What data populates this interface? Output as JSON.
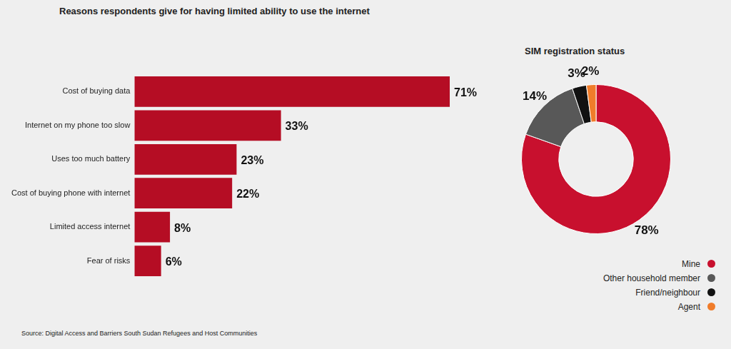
{
  "chart_data": [
    {
      "type": "bar",
      "orientation": "horizontal",
      "title": "Reasons respondents give for having limited ability to use the internet",
      "categories": [
        "Cost of buying data",
        "Internet on my phone too slow",
        "Uses too much battery",
        "Cost of buying phone with internet",
        "Limited access internet",
        "Fear of risks"
      ],
      "values": [
        71,
        33,
        23,
        22,
        8,
        6
      ],
      "value_labels": [
        "71%",
        "33%",
        "23%",
        "22%",
        "8%",
        "6%"
      ],
      "color": "#b50d24",
      "xlim": [
        0,
        71
      ],
      "grid": false,
      "data_labels": true,
      "tick_labels": "y"
    },
    {
      "type": "doughnut",
      "title": "SIM registration status",
      "categories": [
        "Mine",
        "Other household member",
        "Friend/neighbour",
        "Agent"
      ],
      "values": [
        78,
        14,
        3,
        2
      ],
      "value_labels": [
        "78%",
        "14%",
        "3%",
        "2%"
      ],
      "colors": [
        "#c8102e",
        "#585858",
        "#111111",
        "#f07c2a"
      ],
      "legend": "right",
      "data_labels": true
    }
  ],
  "source": "Source: Digital Access and Barriers South Sudan Refugees and Host Communities"
}
